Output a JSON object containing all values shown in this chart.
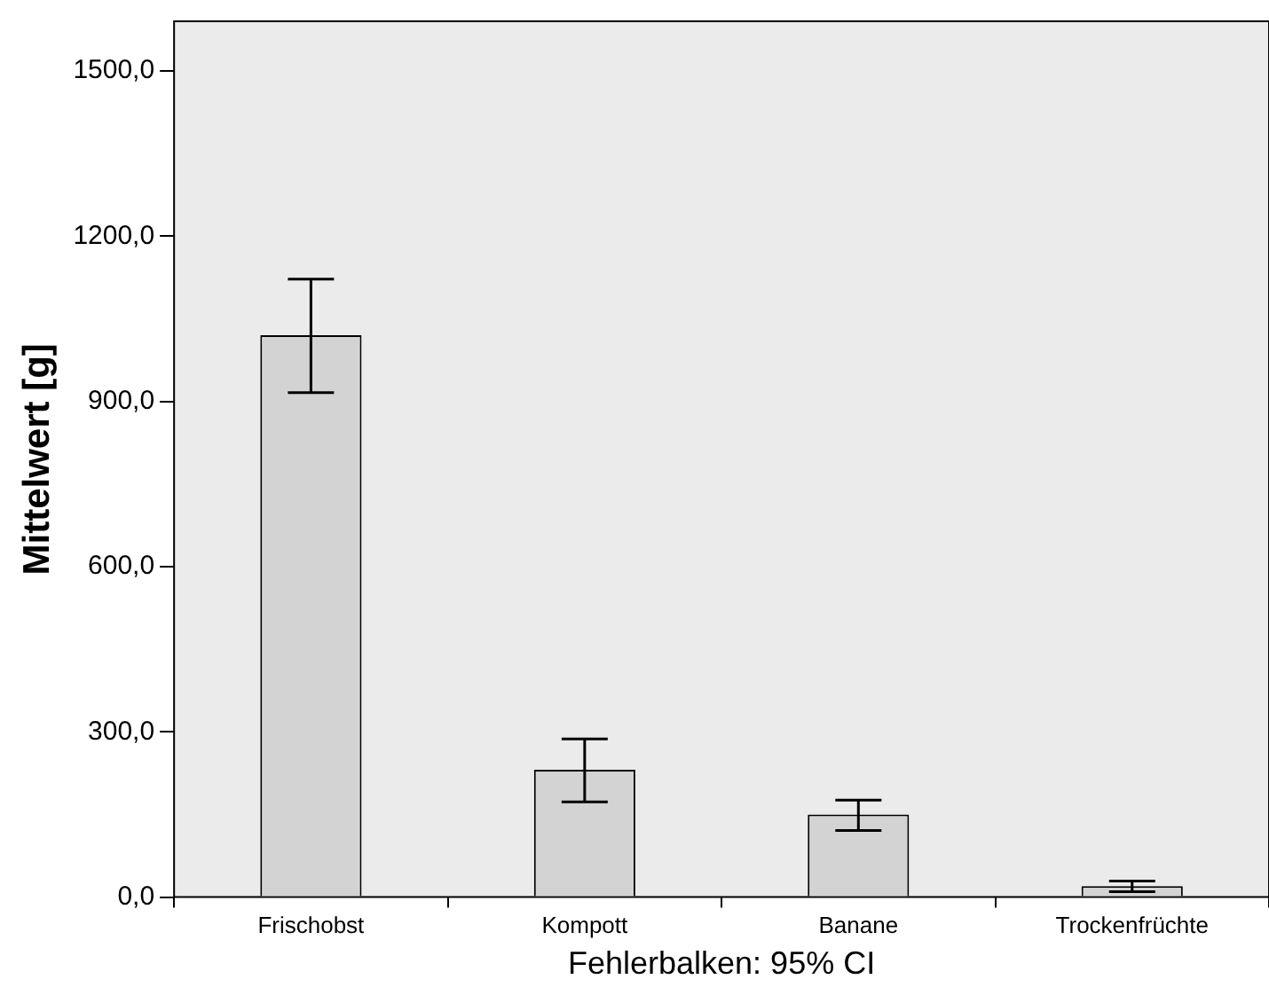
{
  "chart_data": {
    "type": "bar",
    "xlabel": "Fehlerbalken: 95% CI",
    "ylabel": "Mittelwert [g]",
    "categories": [
      "Frischobst",
      "Kompott",
      "Banane",
      "Trockenfrüchte"
    ],
    "values": [
      1020,
      231,
      150,
      20
    ],
    "errors": [
      [
        916,
        1122
      ],
      [
        173,
        287
      ],
      [
        121,
        176
      ],
      [
        10,
        29
      ]
    ],
    "color": "#d3d3d3",
    "ylim": [
      0,
      1590
    ],
    "yticks": [
      {
        "value": 0,
        "label": "0,0"
      },
      {
        "value": 300,
        "label": "300,0"
      },
      {
        "value": 600,
        "label": "600,0"
      },
      {
        "value": 900,
        "label": "900,0"
      },
      {
        "value": 1200,
        "label": "1200,0"
      },
      {
        "value": 1500,
        "label": "1500,0"
      }
    ],
    "grid": false,
    "legend": false
  }
}
